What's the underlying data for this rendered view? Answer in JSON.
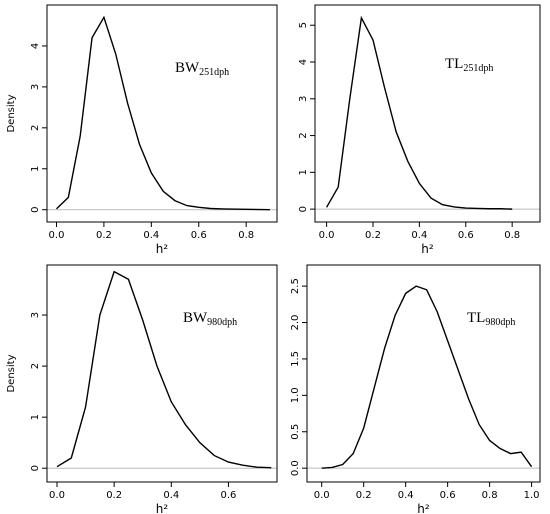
{
  "chart_data": [
    {
      "type": "line",
      "ylabel": "Density",
      "xlabel": "h²",
      "annotation": "BW",
      "annotation_sub": "251dph",
      "color": "#000000",
      "xlim": [
        -0.04,
        0.93
      ],
      "ylim": [
        -0.3,
        5.0
      ],
      "xticks": [
        {
          "value": 0,
          "label": "0.0"
        },
        {
          "value": 0.2,
          "label": "0.2"
        },
        {
          "value": 0.4,
          "label": "0.4"
        },
        {
          "value": 0.6,
          "label": "0.6"
        },
        {
          "value": 0.8,
          "label": "0.8"
        }
      ],
      "yticks": [
        0,
        1,
        2,
        3,
        4
      ],
      "x": [
        0,
        0.05,
        0.1,
        0.15,
        0.2,
        0.25,
        0.3,
        0.35,
        0.4,
        0.45,
        0.5,
        0.55,
        0.6,
        0.65,
        0.7,
        0.8,
        0.9
      ],
      "values": [
        0.02,
        0.3,
        1.8,
        4.2,
        4.7,
        3.8,
        2.6,
        1.6,
        0.9,
        0.45,
        0.22,
        0.1,
        0.06,
        0.03,
        0.02,
        0.01,
        0
      ]
    },
    {
      "type": "line",
      "xlabel": "h²",
      "annotation": "TL",
      "annotation_sub": "251dph",
      "color": "#000000",
      "xlim": [
        -0.05,
        0.92
      ],
      "ylim": [
        -0.35,
        5.55
      ],
      "xticks": [
        {
          "value": 0,
          "label": "0.0"
        },
        {
          "value": 0.2,
          "label": "0.2"
        },
        {
          "value": 0.4,
          "label": "0.4"
        },
        {
          "value": 0.6,
          "label": "0.6"
        },
        {
          "value": 0.8,
          "label": "0.8"
        }
      ],
      "yticks": [
        0,
        1,
        2,
        3,
        4,
        5
      ],
      "x": [
        0,
        0.05,
        0.1,
        0.15,
        0.2,
        0.25,
        0.3,
        0.35,
        0.4,
        0.45,
        0.5,
        0.55,
        0.6,
        0.65,
        0.7,
        0.75,
        0.8
      ],
      "values": [
        0.05,
        0.6,
        3.0,
        5.2,
        4.6,
        3.3,
        2.1,
        1.3,
        0.7,
        0.3,
        0.12,
        0.06,
        0.03,
        0.02,
        0.01,
        0.01,
        0
      ]
    },
    {
      "type": "line",
      "ylabel": "Density",
      "xlabel": "h²",
      "annotation": "BW",
      "annotation_sub": "980dph",
      "color": "#000000",
      "xlim": [
        -0.035,
        0.77
      ],
      "ylim": [
        -0.27,
        3.98
      ],
      "xticks": [
        {
          "value": 0,
          "label": "0.0"
        },
        {
          "value": 0.2,
          "label": "0.2"
        },
        {
          "value": 0.4,
          "label": "0.4"
        },
        {
          "value": 0.6,
          "label": "0.6"
        }
      ],
      "yticks": [
        0,
        1,
        2,
        3
      ],
      "x": [
        0,
        0.05,
        0.1,
        0.15,
        0.2,
        0.25,
        0.3,
        0.35,
        0.4,
        0.45,
        0.5,
        0.55,
        0.6,
        0.65,
        0.7,
        0.75
      ],
      "values": [
        0.03,
        0.2,
        1.2,
        3.0,
        3.85,
        3.7,
        2.9,
        2.0,
        1.3,
        0.85,
        0.5,
        0.25,
        0.12,
        0.06,
        0.02,
        0.01
      ]
    },
    {
      "type": "line",
      "xlabel": "h²",
      "annotation": "TL",
      "annotation_sub": "980dph",
      "color": "#000000",
      "xlim": [
        -0.07,
        1.04
      ],
      "ylim": [
        -0.19,
        2.79
      ],
      "xticks": [
        {
          "value": 0,
          "label": "0.0"
        },
        {
          "value": 0.2,
          "label": "0.2"
        },
        {
          "value": 0.4,
          "label": "0.4"
        },
        {
          "value": 0.6,
          "label": "0.6"
        },
        {
          "value": 0.8,
          "label": "0.8"
        },
        {
          "value": 1,
          "label": "1.0"
        }
      ],
      "yticks": [
        {
          "value": 0,
          "label": "0.0"
        },
        {
          "value": 0.5,
          "label": "0.5"
        },
        {
          "value": 1,
          "label": "1.0"
        },
        {
          "value": 1.5,
          "label": "1.5"
        },
        {
          "value": 2,
          "label": "2.0"
        },
        {
          "value": 2.5,
          "label": "2.5"
        }
      ],
      "x": [
        0,
        0.05,
        0.1,
        0.15,
        0.2,
        0.25,
        0.3,
        0.35,
        0.4,
        0.45,
        0.5,
        0.55,
        0.6,
        0.65,
        0.7,
        0.75,
        0.8,
        0.85,
        0.9,
        0.95,
        1.0
      ],
      "values": [
        0,
        0.01,
        0.05,
        0.2,
        0.55,
        1.1,
        1.65,
        2.1,
        2.4,
        2.5,
        2.45,
        2.15,
        1.75,
        1.35,
        0.95,
        0.6,
        0.38,
        0.27,
        0.2,
        0.22,
        0.02
      ]
    }
  ]
}
